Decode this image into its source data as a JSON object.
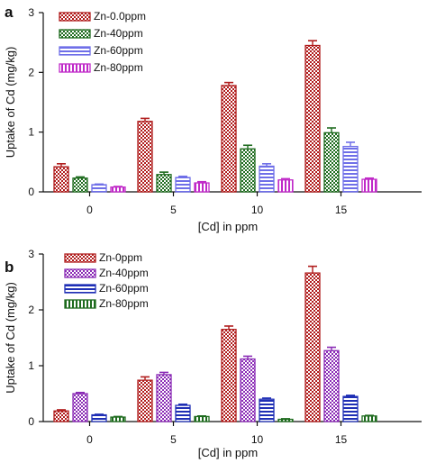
{
  "chart_data": [
    {
      "panel": "a",
      "type": "bar",
      "xlabel": "[Cd] in ppm",
      "ylabel": "Uptake of Cd (mg/kg)",
      "categories": [
        "0",
        "5",
        "10",
        "15"
      ],
      "ylim": [
        0,
        3
      ],
      "yticks": [
        "0",
        "1",
        "2",
        "3"
      ],
      "legend": "top-left",
      "error_bars": true,
      "series": [
        {
          "name": "Zn-0.0ppm",
          "color": "#b01c1c",
          "pattern": "checker",
          "values": [
            0.42,
            1.18,
            1.78,
            2.45
          ],
          "errors": [
            0.05,
            0.05,
            0.05,
            0.08
          ]
        },
        {
          "name": "Zn-40ppm",
          "color": "#1e6b1e",
          "pattern": "checker",
          "values": [
            0.23,
            0.29,
            0.72,
            0.99
          ],
          "errors": [
            0.02,
            0.04,
            0.06,
            0.08
          ]
        },
        {
          "name": "Zn-60ppm",
          "color": "#6f6fe8",
          "pattern": "horizontal",
          "values": [
            0.12,
            0.24,
            0.43,
            0.76
          ],
          "errors": [
            0.01,
            0.02,
            0.04,
            0.07
          ]
        },
        {
          "name": "Zn-80ppm",
          "color": "#c02ac8",
          "pattern": "vertical",
          "values": [
            0.08,
            0.15,
            0.2,
            0.21
          ],
          "errors": [
            0.01,
            0.02,
            0.02,
            0.02
          ]
        }
      ]
    },
    {
      "panel": "b",
      "type": "bar",
      "xlabel": "[Cd] in ppm",
      "ylabel": "Uptake of Cd (mg/kg)",
      "categories": [
        "0",
        "5",
        "10",
        "15"
      ],
      "ylim": [
        0,
        3
      ],
      "yticks": [
        "0",
        "1",
        "2",
        "3"
      ],
      "legend": "top-left",
      "error_bars": true,
      "series": [
        {
          "name": "Zn-0ppm",
          "color": "#b01c1c",
          "pattern": "checker",
          "values": [
            0.19,
            0.74,
            1.65,
            2.66
          ],
          "errors": [
            0.02,
            0.06,
            0.06,
            0.12
          ]
        },
        {
          "name": "Zn-40ppm",
          "color": "#8a2bb5",
          "pattern": "checker",
          "values": [
            0.5,
            0.84,
            1.12,
            1.27
          ],
          "errors": [
            0.02,
            0.04,
            0.05,
            0.06
          ]
        },
        {
          "name": "Zn-60ppm",
          "color": "#1f2fb5",
          "pattern": "horizontal",
          "values": [
            0.12,
            0.29,
            0.4,
            0.45
          ],
          "errors": [
            0.01,
            0.02,
            0.02,
            0.02
          ]
        },
        {
          "name": "Zn-80ppm",
          "color": "#1e6b1e",
          "pattern": "vertical",
          "values": [
            0.08,
            0.09,
            0.04,
            0.1
          ],
          "errors": [
            0.01,
            0.01,
            0.01,
            0.01
          ]
        }
      ]
    }
  ]
}
